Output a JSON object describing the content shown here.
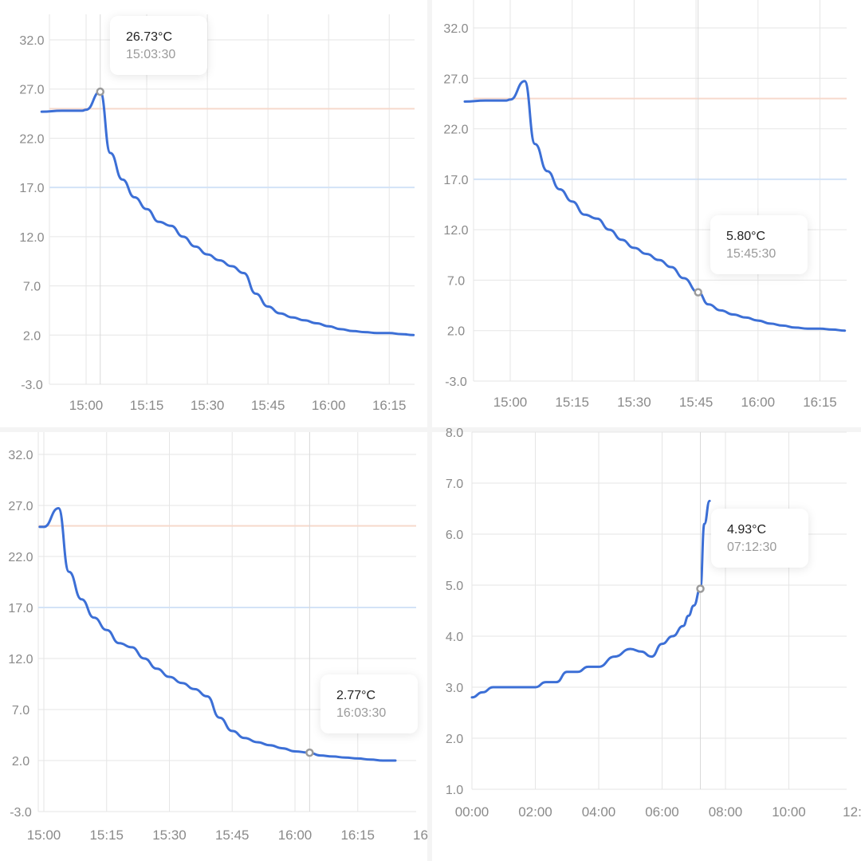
{
  "colors": {
    "line": "#3c6fd6",
    "grid": "#e6e6e6",
    "ref_high": "#f6d9cc",
    "ref_low": "#d3e3f7",
    "marker": "#9b9b9b",
    "text": "#8a8a8a"
  },
  "chart_data": [
    {
      "type": "line",
      "xlabel": "",
      "ylabel": "",
      "x_ticks": [
        "15:00",
        "15:15",
        "15:30",
        "15:45",
        "16:00",
        "16:15"
      ],
      "y_ticks": [
        "32.0",
        "27.0",
        "22.0",
        "17.0",
        "12.0",
        "7.0",
        "2.0",
        "-3.0"
      ],
      "ylim": [
        -3,
        32
      ],
      "reference_lines": [
        25.0,
        17.0
      ],
      "grid": true,
      "x": [
        "14:49",
        "14:54",
        "14:59",
        "15:00",
        "15:03:30",
        "15:06",
        "15:09",
        "15:12",
        "15:15",
        "15:18",
        "15:21",
        "15:24",
        "15:27",
        "15:30",
        "15:33",
        "15:36",
        "15:39",
        "15:42",
        "15:45",
        "15:48",
        "15:51",
        "15:54",
        "15:57",
        "16:00",
        "16:03",
        "16:06",
        "16:09",
        "16:12",
        "16:15",
        "16:18",
        "16:21"
      ],
      "values": [
        24.7,
        24.8,
        24.8,
        24.9,
        26.73,
        20.5,
        17.8,
        16.0,
        14.8,
        13.5,
        13.1,
        12.0,
        11.0,
        10.2,
        9.6,
        9.0,
        8.3,
        6.2,
        4.9,
        4.2,
        3.8,
        3.5,
        3.2,
        2.9,
        2.6,
        2.4,
        2.3,
        2.2,
        2.2,
        2.1,
        2.0
      ],
      "tooltip": {
        "value": "26.73°C",
        "time": "15:03:30"
      }
    },
    {
      "type": "line",
      "xlabel": "",
      "ylabel": "",
      "x_ticks": [
        "15:00",
        "15:15",
        "15:30",
        "15:45",
        "16:00",
        "16:15"
      ],
      "y_ticks": [
        "32.0",
        "27.0",
        "22.0",
        "17.0",
        "12.0",
        "7.0",
        "2.0",
        "-3.0"
      ],
      "ylim": [
        -3,
        32
      ],
      "reference_lines": [
        25.0,
        17.0
      ],
      "grid": true,
      "x": [
        "14:49",
        "14:54",
        "14:59",
        "15:00",
        "15:03:30",
        "15:06",
        "15:09",
        "15:12",
        "15:15",
        "15:18",
        "15:21",
        "15:24",
        "15:27",
        "15:30",
        "15:33",
        "15:36",
        "15:39",
        "15:42",
        "15:45:30",
        "15:48",
        "15:51",
        "15:54",
        "15:57",
        "16:00",
        "16:03",
        "16:06",
        "16:09",
        "16:12",
        "16:15",
        "16:18",
        "16:21"
      ],
      "values": [
        24.7,
        24.8,
        24.8,
        24.9,
        26.73,
        20.5,
        17.8,
        16.0,
        14.8,
        13.5,
        13.1,
        12.0,
        11.0,
        10.2,
        9.6,
        9.0,
        8.3,
        7.2,
        5.8,
        4.6,
        4.0,
        3.6,
        3.3,
        3.0,
        2.7,
        2.5,
        2.3,
        2.2,
        2.2,
        2.1,
        2.0
      ],
      "tooltip": {
        "value": "5.80°C",
        "time": "15:45:30"
      }
    },
    {
      "type": "line",
      "xlabel": "",
      "ylabel": "",
      "x_ticks": [
        "15:00",
        "15:15",
        "15:30",
        "15:45",
        "16:00",
        "16:15",
        "16"
      ],
      "y_ticks": [
        "32.0",
        "27.0",
        "22.0",
        "17.0",
        "12.0",
        "7.0",
        "2.0",
        "-3.0"
      ],
      "ylim": [
        -3,
        32
      ],
      "reference_lines": [
        25.0,
        17.0
      ],
      "grid": true,
      "x": [
        "14:59",
        "15:00",
        "15:03:30",
        "15:06",
        "15:09",
        "15:12",
        "15:15",
        "15:18",
        "15:21",
        "15:24",
        "15:27",
        "15:30",
        "15:33",
        "15:36",
        "15:39",
        "15:42",
        "15:45",
        "15:48",
        "15:51",
        "15:54",
        "15:57",
        "16:00",
        "16:03:30",
        "16:06",
        "16:09",
        "16:12",
        "16:15",
        "16:18",
        "16:21",
        "16:24"
      ],
      "values": [
        24.9,
        24.9,
        26.73,
        20.5,
        17.8,
        16.0,
        14.8,
        13.5,
        13.1,
        12.0,
        11.0,
        10.2,
        9.6,
        9.0,
        8.3,
        6.2,
        4.9,
        4.2,
        3.8,
        3.5,
        3.2,
        2.9,
        2.77,
        2.5,
        2.4,
        2.3,
        2.2,
        2.1,
        2.0,
        2.0
      ],
      "tooltip": {
        "value": "2.77°C",
        "time": "16:03:30"
      }
    },
    {
      "type": "line",
      "xlabel": "",
      "ylabel": "",
      "x_ticks": [
        "00:00",
        "02:00",
        "04:00",
        "06:00",
        "08:00",
        "10:00",
        "12:"
      ],
      "y_ticks": [
        "8.0",
        "7.0",
        "6.0",
        "5.0",
        "4.0",
        "3.0",
        "2.0",
        "1.0"
      ],
      "ylim": [
        1,
        8
      ],
      "reference_lines": [],
      "grid": true,
      "x": [
        "00:00",
        "00:20",
        "00:40",
        "01:00",
        "01:30",
        "02:00",
        "02:20",
        "02:40",
        "03:00",
        "03:20",
        "03:40",
        "04:00",
        "04:30",
        "05:00",
        "05:20",
        "05:40",
        "06:00",
        "06:20",
        "06:40",
        "06:50",
        "07:00",
        "07:12:30",
        "07:20",
        "07:30"
      ],
      "values": [
        2.8,
        2.9,
        3.0,
        3.0,
        3.0,
        3.0,
        3.1,
        3.1,
        3.3,
        3.3,
        3.4,
        3.4,
        3.6,
        3.75,
        3.7,
        3.6,
        3.85,
        4.0,
        4.2,
        4.4,
        4.6,
        4.93,
        6.2,
        6.65
      ],
      "tooltip": {
        "value": "4.93°C",
        "time": "07:12:30"
      }
    }
  ]
}
